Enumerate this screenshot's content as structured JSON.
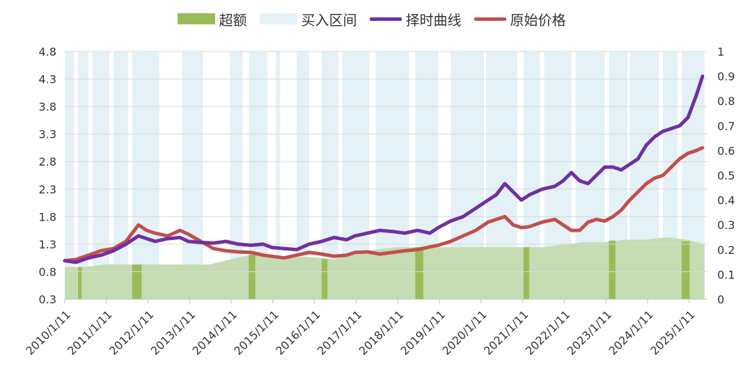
{
  "chart_data": {
    "type": "line",
    "x_categories": [
      "2010/1/11",
      "2011/1/11",
      "2012/1/11",
      "2013/1/11",
      "2014/1/11",
      "2015/1/11",
      "2016/1/11",
      "2017/1/11",
      "2018/1/11",
      "2019/1/11",
      "2020/1/11",
      "2021/1/11",
      "2022/1/11",
      "2023/1/11",
      "2024/1/11",
      "2025/1/11"
    ],
    "y_left": {
      "ticks": [
        "4.8",
        "4.3",
        "3.8",
        "3.3",
        "2.8",
        "2.3",
        "1.8",
        "1.3",
        "0.8",
        "0.3"
      ],
      "ylim": [
        0.3,
        4.8
      ]
    },
    "y_right": {
      "ticks": [
        "1",
        "0.9",
        "0.8",
        "0.7",
        "0.6",
        "0.5",
        "0.4",
        "0.3",
        "0.2",
        "0.1",
        "0"
      ],
      "ylim": [
        0,
        1
      ]
    },
    "legend": {
      "placement": "top",
      "items": [
        {
          "key": "excess",
          "label": "超额",
          "kind": "area",
          "color": "#9bbb59"
        },
        {
          "key": "buy",
          "label": "买入区间",
          "kind": "area",
          "color": "#e4f1f7"
        },
        {
          "key": "timing",
          "label": "择时曲线",
          "kind": "line",
          "color": "#7030a0"
        },
        {
          "key": "price",
          "label": "原始价格",
          "kind": "line",
          "color": "#c0504d"
        }
      ]
    },
    "series": [
      {
        "name": "择时曲线",
        "axis": "left",
        "color": "#7030a0",
        "x": [
          2010.03,
          2010.3,
          2010.6,
          2010.9,
          2011.2,
          2011.5,
          2011.8,
          2012.0,
          2012.2,
          2012.5,
          2012.8,
          2013.0,
          2013.3,
          2013.6,
          2013.9,
          2014.2,
          2014.5,
          2014.8,
          2015.0,
          2015.3,
          2015.6,
          2015.9,
          2016.2,
          2016.5,
          2016.8,
          2017.0,
          2017.3,
          2017.6,
          2017.9,
          2018.2,
          2018.5,
          2018.8,
          2019.0,
          2019.3,
          2019.6,
          2019.9,
          2020.2,
          2020.4,
          2020.6,
          2020.8,
          2021.0,
          2021.2,
          2021.5,
          2021.8,
          2022.0,
          2022.2,
          2022.4,
          2022.6,
          2022.8,
          2023.0,
          2023.2,
          2023.4,
          2023.6,
          2023.8,
          2024.0,
          2024.2,
          2024.4,
          2024.6,
          2024.8,
          2025.0,
          2025.2,
          2025.35
        ],
        "y": [
          1.0,
          0.97,
          1.05,
          1.1,
          1.18,
          1.3,
          1.45,
          1.4,
          1.35,
          1.4,
          1.42,
          1.35,
          1.33,
          1.32,
          1.35,
          1.3,
          1.28,
          1.3,
          1.24,
          1.22,
          1.2,
          1.3,
          1.35,
          1.42,
          1.38,
          1.45,
          1.5,
          1.55,
          1.53,
          1.5,
          1.55,
          1.5,
          1.6,
          1.72,
          1.8,
          1.95,
          2.1,
          2.2,
          2.4,
          2.25,
          2.1,
          2.2,
          2.3,
          2.35,
          2.45,
          2.6,
          2.45,
          2.4,
          2.55,
          2.7,
          2.7,
          2.65,
          2.75,
          2.85,
          3.1,
          3.25,
          3.35,
          3.4,
          3.45,
          3.6,
          4.0,
          4.35
        ]
      },
      {
        "name": "原始价格",
        "axis": "left",
        "color": "#c0504d",
        "x": [
          2010.03,
          2010.3,
          2010.6,
          2010.9,
          2011.2,
          2011.5,
          2011.8,
          2012.0,
          2012.2,
          2012.5,
          2012.8,
          2013.0,
          2013.3,
          2013.6,
          2013.9,
          2014.2,
          2014.5,
          2014.8,
          2015.0,
          2015.3,
          2015.6,
          2015.9,
          2016.2,
          2016.5,
          2016.8,
          2017.0,
          2017.3,
          2017.6,
          2017.9,
          2018.2,
          2018.5,
          2018.8,
          2019.0,
          2019.3,
          2019.6,
          2019.9,
          2020.2,
          2020.4,
          2020.6,
          2020.8,
          2021.0,
          2021.2,
          2021.5,
          2021.8,
          2022.0,
          2022.2,
          2022.4,
          2022.6,
          2022.8,
          2023.0,
          2023.2,
          2023.4,
          2023.6,
          2023.8,
          2024.0,
          2024.2,
          2024.4,
          2024.6,
          2024.8,
          2025.0,
          2025.2,
          2025.35
        ],
        "y": [
          1.0,
          1.02,
          1.1,
          1.18,
          1.22,
          1.35,
          1.65,
          1.55,
          1.5,
          1.45,
          1.55,
          1.48,
          1.35,
          1.22,
          1.18,
          1.16,
          1.15,
          1.1,
          1.08,
          1.05,
          1.1,
          1.15,
          1.12,
          1.08,
          1.1,
          1.15,
          1.16,
          1.12,
          1.15,
          1.18,
          1.2,
          1.25,
          1.28,
          1.35,
          1.45,
          1.55,
          1.7,
          1.75,
          1.8,
          1.65,
          1.6,
          1.62,
          1.7,
          1.75,
          1.65,
          1.55,
          1.55,
          1.7,
          1.75,
          1.72,
          1.8,
          1.92,
          2.1,
          2.25,
          2.4,
          2.5,
          2.55,
          2.7,
          2.85,
          2.95,
          3.0,
          3.05
        ]
      }
    ],
    "excess_area": {
      "name": "超额",
      "axis": "right",
      "color": "#9bbb59",
      "x": [
        2010.03,
        2010.5,
        2011.0,
        2011.5,
        2012.0,
        2012.5,
        2013.0,
        2013.5,
        2014.0,
        2014.5,
        2015.0,
        2015.5,
        2016.0,
        2016.5,
        2017.0,
        2017.5,
        2018.0,
        2018.5,
        2019.0,
        2019.5,
        2020.0,
        2020.5,
        2021.0,
        2021.5,
        2022.0,
        2022.5,
        2023.0,
        2023.5,
        2024.0,
        2024.5,
        2025.0,
        2025.4
      ],
      "y": [
        0.13,
        0.13,
        0.14,
        0.14,
        0.14,
        0.14,
        0.14,
        0.14,
        0.16,
        0.18,
        0.18,
        0.17,
        0.17,
        0.16,
        0.19,
        0.2,
        0.21,
        0.21,
        0.21,
        0.21,
        0.21,
        0.21,
        0.21,
        0.21,
        0.22,
        0.23,
        0.23,
        0.24,
        0.24,
        0.25,
        0.24,
        0.22
      ]
    },
    "buy_intervals": {
      "name": "买入区间",
      "axis": "right",
      "color": "#e4f1f7",
      "ranges": [
        [
          2010.03,
          2010.25
        ],
        [
          2010.35,
          2010.6
        ],
        [
          2010.7,
          2011.1
        ],
        [
          2011.2,
          2011.55
        ],
        [
          2011.65,
          2012.3
        ],
        [
          2012.85,
          2013.35
        ],
        [
          2014.0,
          2014.3
        ],
        [
          2014.45,
          2014.9
        ],
        [
          2015.1,
          2015.2
        ],
        [
          2015.6,
          2015.9
        ],
        [
          2016.2,
          2016.6
        ],
        [
          2016.7,
          2017.35
        ],
        [
          2017.5,
          2018.3
        ],
        [
          2018.45,
          2019.0
        ],
        [
          2019.3,
          2020.1
        ],
        [
          2020.15,
          2020.9
        ],
        [
          2021.05,
          2021.45
        ],
        [
          2021.55,
          2022.2
        ],
        [
          2022.3,
          2023.0
        ],
        [
          2023.1,
          2023.55
        ],
        [
          2023.6,
          2024.3
        ],
        [
          2024.4,
          2024.75
        ],
        [
          2024.85,
          2025.4
        ]
      ]
    }
  }
}
